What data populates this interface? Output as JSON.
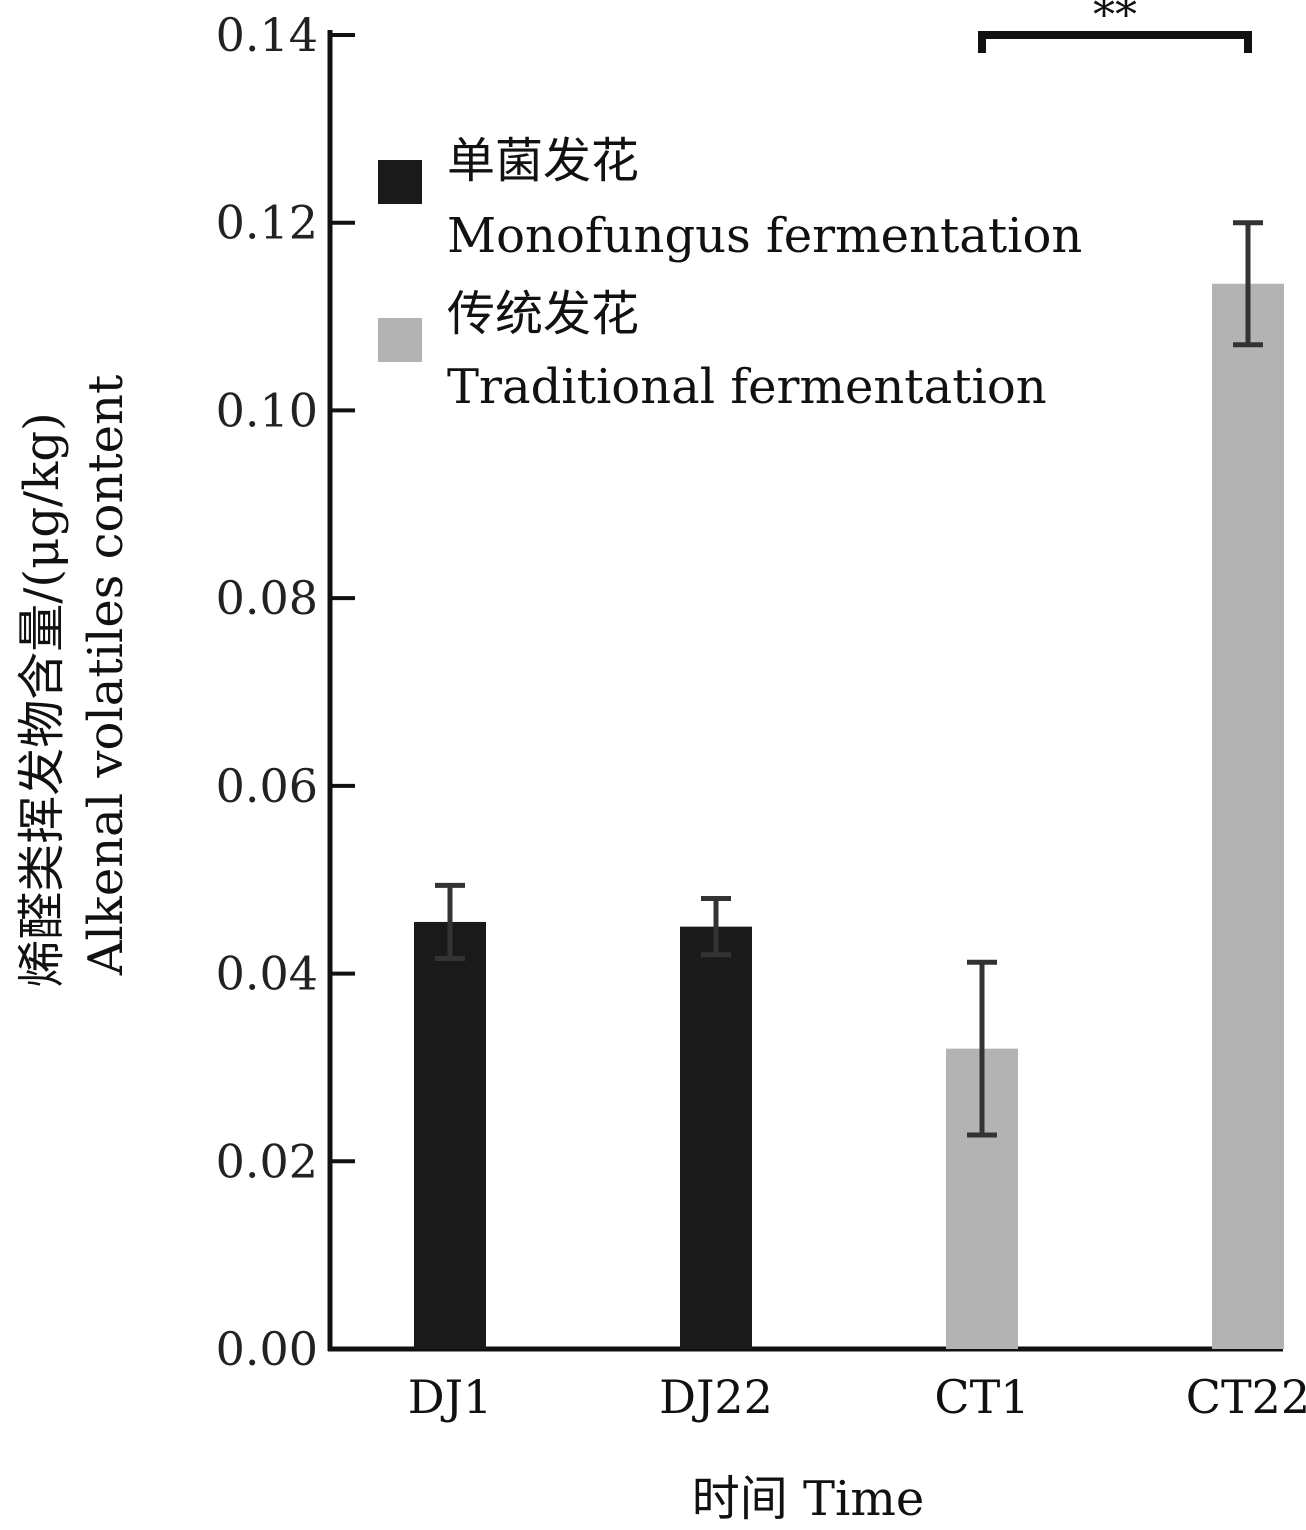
{
  "chart_data": {
    "type": "bar",
    "categories": [
      "DJ1",
      "DJ22",
      "CT1",
      "CT22"
    ],
    "values": [
      0.0455,
      0.045,
      0.032,
      0.1135
    ],
    "errors": [
      0.0039,
      0.003,
      0.0092,
      0.0065
    ],
    "bar_series": [
      "mono",
      "mono",
      "trad",
      "trad"
    ],
    "series": [
      {
        "key": "mono",
        "name": "单菌发花",
        "name_en": "Monofungus fermentation",
        "color": "#1a1a1a"
      },
      {
        "key": "trad",
        "name": "传统发花",
        "name_en": "Traditional fermentation",
        "color": "#b3b3b3"
      }
    ],
    "xlabel": "时间  Time",
    "ylabel": "烯醛类挥发物含量/(μg/kg)",
    "ylabel_en": "Alkenal volatiles content",
    "ylim": [
      0,
      0.14
    ],
    "yticks": [
      "0.00",
      "0.02",
      "0.04",
      "0.06",
      "0.08",
      "0.10",
      "0.12",
      "0.14"
    ],
    "significance": {
      "from": "CT1",
      "to": "CT22",
      "label": "**"
    },
    "legend_position": "top-left",
    "grid": false
  }
}
